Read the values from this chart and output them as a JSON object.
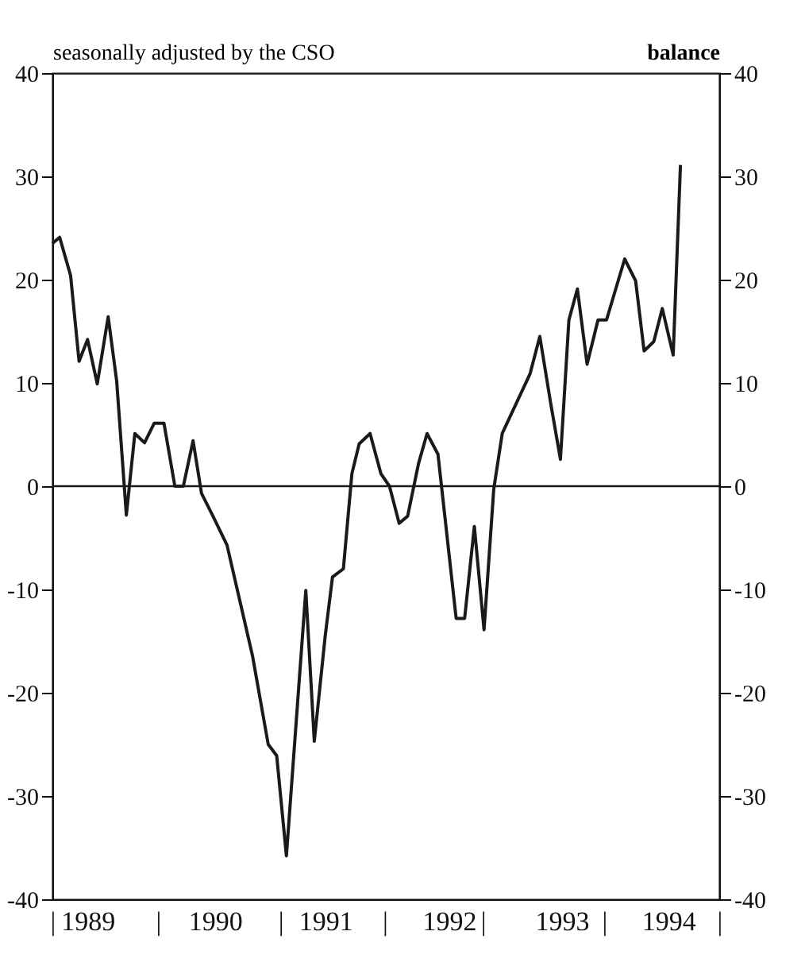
{
  "chart_data": {
    "type": "line",
    "ylabel": "seasonally adjusted by the CSO",
    "y2label": "balance",
    "x": [
      1989.0,
      1989.06,
      1989.15,
      1989.22,
      1989.29,
      1989.37,
      1989.46,
      1989.53,
      1989.61,
      1989.68,
      1989.76,
      1989.84,
      1989.92,
      1990.01,
      1990.08,
      1990.16,
      1990.23,
      1990.32,
      1990.44,
      1990.65,
      1990.78,
      1990.85,
      1990.93,
      1991.09,
      1991.16,
      1991.25,
      1991.31,
      1991.4,
      1991.47,
      1991.53,
      1991.62,
      1991.71,
      1991.78,
      1991.86,
      1991.93,
      1992.02,
      1992.09,
      1992.18,
      1992.33,
      1992.4,
      1992.48,
      1992.56,
      1992.64,
      1992.71,
      1992.94,
      1993.02,
      1993.11,
      1993.19,
      1993.26,
      1993.33,
      1993.41,
      1993.5,
      1993.57,
      1993.72,
      1993.81,
      1993.88,
      1993.96,
      1994.03,
      1994.12,
      1994.18
    ],
    "series": [
      {
        "color": "#1a1a1a",
        "values": [
          23.5,
          24.1,
          20.4,
          12.1,
          14.2,
          9.9,
          16.4,
          10.2,
          -2.8,
          5.1,
          4.2,
          6.1,
          6.1,
          0,
          0,
          4.4,
          -0.7,
          -2.8,
          -5.7,
          -16.4,
          -25,
          -26.1,
          -35.8,
          -10.1,
          -24.7,
          -14.5,
          -8.8,
          -8.0,
          1.2,
          4.1,
          5.1,
          1.2,
          0,
          -3.6,
          -2.9,
          2.2,
          5.1,
          3.1,
          -12.8,
          -12.8,
          -3.9,
          -13.9,
          -0.3,
          5.1,
          10.9,
          14.5,
          8.0,
          2.6,
          16.1,
          19.1,
          11.8,
          16.1,
          16.1,
          22.0,
          19.9,
          13.1,
          14.0,
          17.2,
          12.7,
          31.1
        ]
      }
    ],
    "xlim": [
      1989,
      1994.5
    ],
    "xticks": [
      {
        "value": 1989.0,
        "label": "|"
      },
      {
        "value": 1989.29,
        "label": "1989"
      },
      {
        "value": 1989.87,
        "label": "|"
      },
      {
        "value": 1990.34,
        "label": "1990"
      },
      {
        "value": 1990.88,
        "label": "|"
      },
      {
        "value": 1991.25,
        "label": "1991"
      },
      {
        "value": 1991.74,
        "label": "|"
      },
      {
        "value": 1992.27,
        "label": "1992"
      },
      {
        "value": 1992.55,
        "label": "|"
      },
      {
        "value": 1993.2,
        "label": "1993"
      },
      {
        "value": 1993.55,
        "label": "|"
      },
      {
        "value": 1994.08,
        "label": "1994"
      },
      {
        "value": 1994.5,
        "label": "|"
      }
    ],
    "ylim": [
      -40,
      40
    ],
    "yticks": [
      -40,
      -30,
      -20,
      -10,
      0,
      10,
      20,
      30,
      40
    ],
    "y2lim": [
      -40,
      40
    ],
    "y2ticks": [
      -40,
      -30,
      -20,
      -10,
      0,
      10,
      20,
      30,
      40
    ],
    "ref_lines": [
      {
        "axis": "y",
        "value": 0,
        "color": "#1a1a1a"
      }
    ],
    "grid": false,
    "legend": false,
    "marker": "none",
    "line_style": "solid"
  }
}
